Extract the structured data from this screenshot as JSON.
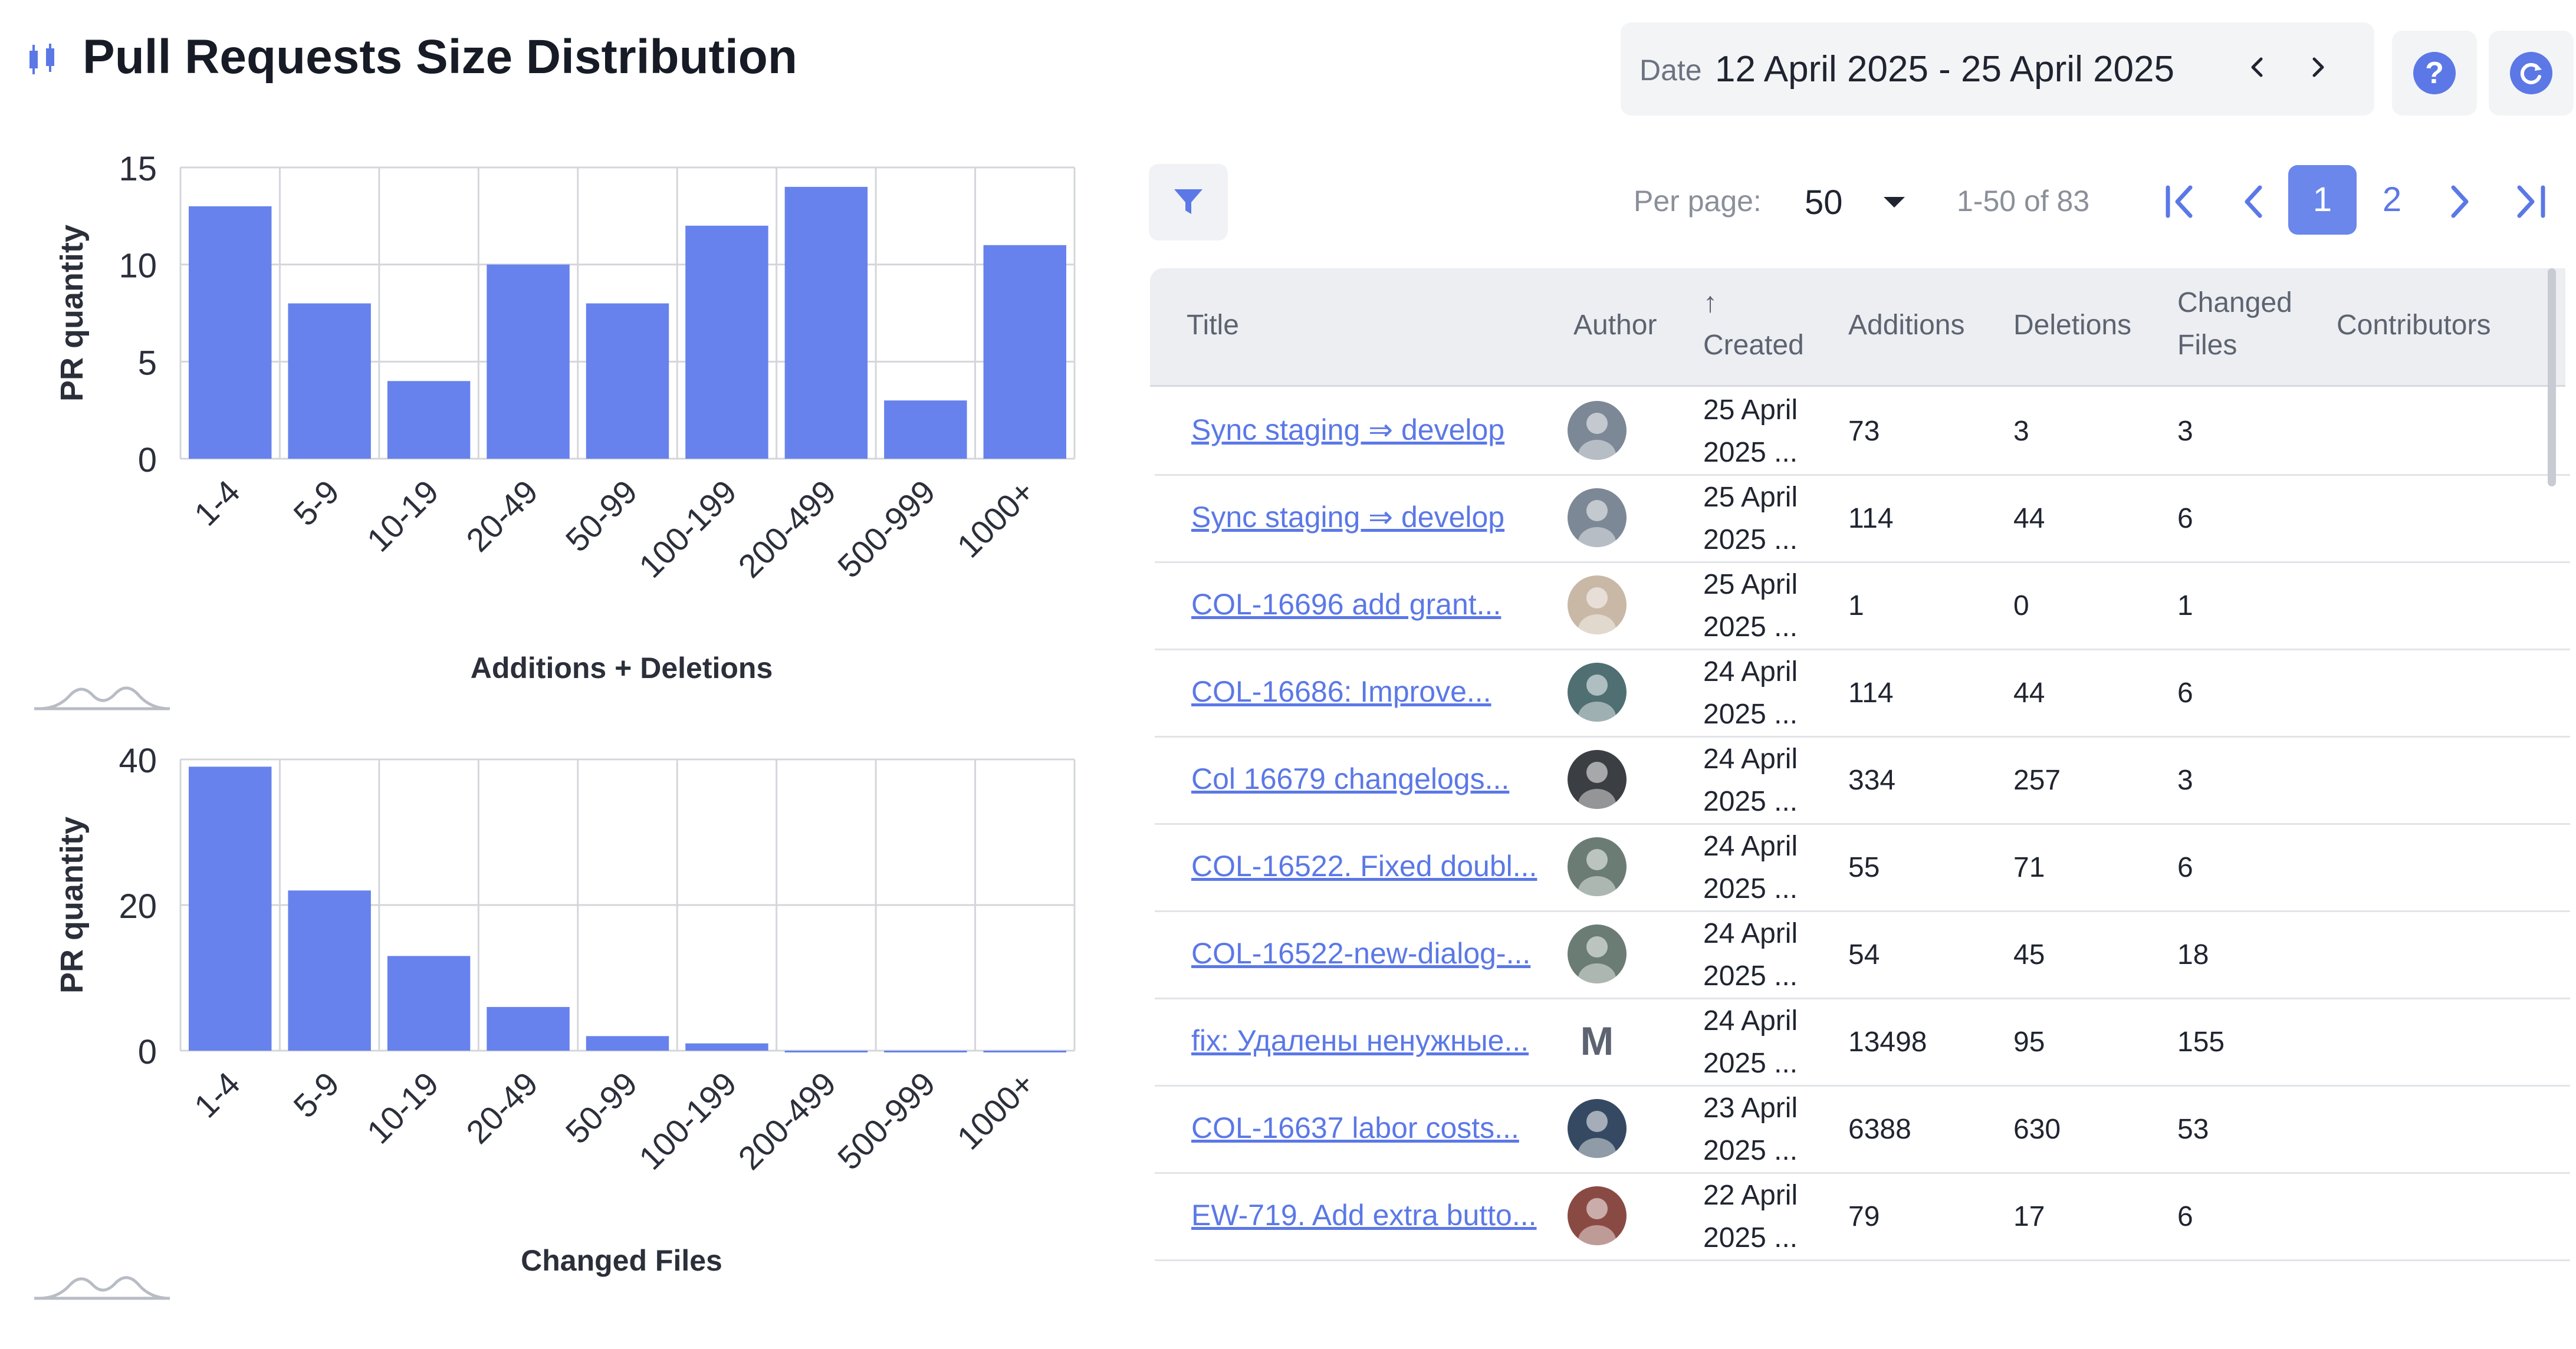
{
  "header": {
    "title": "Pull Requests Size Distribution",
    "date_label": "Date",
    "date_range": "12 April 2025 - 25 April 2025",
    "help_label": "?"
  },
  "colors": {
    "accent": "#5b78e6",
    "bar": "#6782ec",
    "grid": "#d4d6db"
  },
  "chart_data": [
    {
      "type": "bar",
      "categories": [
        "1-4",
        "5-9",
        "10-19",
        "20-49",
        "50-99",
        "100-199",
        "200-499",
        "500-999",
        "1000+"
      ],
      "values": [
        13,
        8,
        4,
        10,
        8,
        12,
        14,
        3,
        11
      ],
      "ylim": [
        0,
        15
      ],
      "yticks": [
        "0",
        "5",
        "10",
        "15"
      ],
      "ylabel": "PR quantity",
      "xlabel": "Additions + Deletions",
      "grid": true
    },
    {
      "type": "bar",
      "categories": [
        "1-4",
        "5-9",
        "10-19",
        "20-49",
        "50-99",
        "100-199",
        "200-499",
        "500-999",
        "1000+"
      ],
      "values": [
        39,
        22,
        13,
        6,
        2,
        1,
        0,
        0,
        0
      ],
      "ylim": [
        0,
        40
      ],
      "yticks": [
        "0",
        "20",
        "40"
      ],
      "ylabel": "PR quantity",
      "xlabel": "Changed Files",
      "grid": true
    }
  ],
  "pagination": {
    "per_page_label": "Per page:",
    "per_page_value": "50",
    "range": "1-50 of 83",
    "pages": [
      "1",
      "2"
    ]
  },
  "table": {
    "headers": {
      "title": "Title",
      "author": "Author",
      "created_arrow": "↑",
      "created": "Created",
      "additions": "Additions",
      "deletions": "Deletions",
      "changed1": "Changed",
      "changed2": "Files",
      "contributors": "Contributors"
    },
    "rows": [
      {
        "title": "Sync staging ⇒ develop",
        "d1": "25 April",
        "d2": "2025 ...",
        "additions": "73",
        "deletions": "3",
        "changed": "3",
        "avatar_color": "#7d8896",
        "avatar_letter": ""
      },
      {
        "title": "Sync staging ⇒ develop",
        "d1": "25 April",
        "d2": "2025 ...",
        "additions": "114",
        "deletions": "44",
        "changed": "6",
        "avatar_color": "#7d8896",
        "avatar_letter": ""
      },
      {
        "title": "COL-16696 add grant...",
        "d1": "25 April",
        "d2": "2025 ...",
        "additions": "1",
        "deletions": "0",
        "changed": "1",
        "avatar_color": "#c9b8a6",
        "avatar_letter": ""
      },
      {
        "title": "COL-16686: Improve...",
        "d1": "24 April",
        "d2": "2025 ...",
        "additions": "114",
        "deletions": "44",
        "changed": "6",
        "avatar_color": "#4f6f73",
        "avatar_letter": ""
      },
      {
        "title": "Col 16679 changelogs...",
        "d1": "24 April",
        "d2": "2025 ...",
        "additions": "334",
        "deletions": "257",
        "changed": "3",
        "avatar_color": "#3b3e42",
        "avatar_letter": ""
      },
      {
        "title": "COL-16522. Fixed doubl...",
        "d1": "24 April",
        "d2": "2025 ...",
        "additions": "55",
        "deletions": "71",
        "changed": "6",
        "avatar_color": "#6b7c74",
        "avatar_letter": ""
      },
      {
        "title": "COL-16522-new-dialog-...",
        "d1": "24 April",
        "d2": "2025 ...",
        "additions": "54",
        "deletions": "45",
        "changed": "18",
        "avatar_color": "#6b7c74",
        "avatar_letter": ""
      },
      {
        "title": "fix: Удалены ненужные...",
        "d1": "24 April",
        "d2": "2025 ...",
        "additions": "13498",
        "deletions": "95",
        "changed": "155",
        "avatar_color": "",
        "avatar_letter": "M"
      },
      {
        "title": "COL-16637 labor costs...",
        "d1": "23 April",
        "d2": "2025 ...",
        "additions": "6388",
        "deletions": "630",
        "changed": "53",
        "avatar_color": "#354a62",
        "avatar_letter": ""
      },
      {
        "title": "EW-719. Add extra butto...",
        "d1": "22 April",
        "d2": "2025 ...",
        "additions": "79",
        "deletions": "17",
        "changed": "6",
        "avatar_color": "#8a4a44",
        "avatar_letter": ""
      }
    ]
  }
}
